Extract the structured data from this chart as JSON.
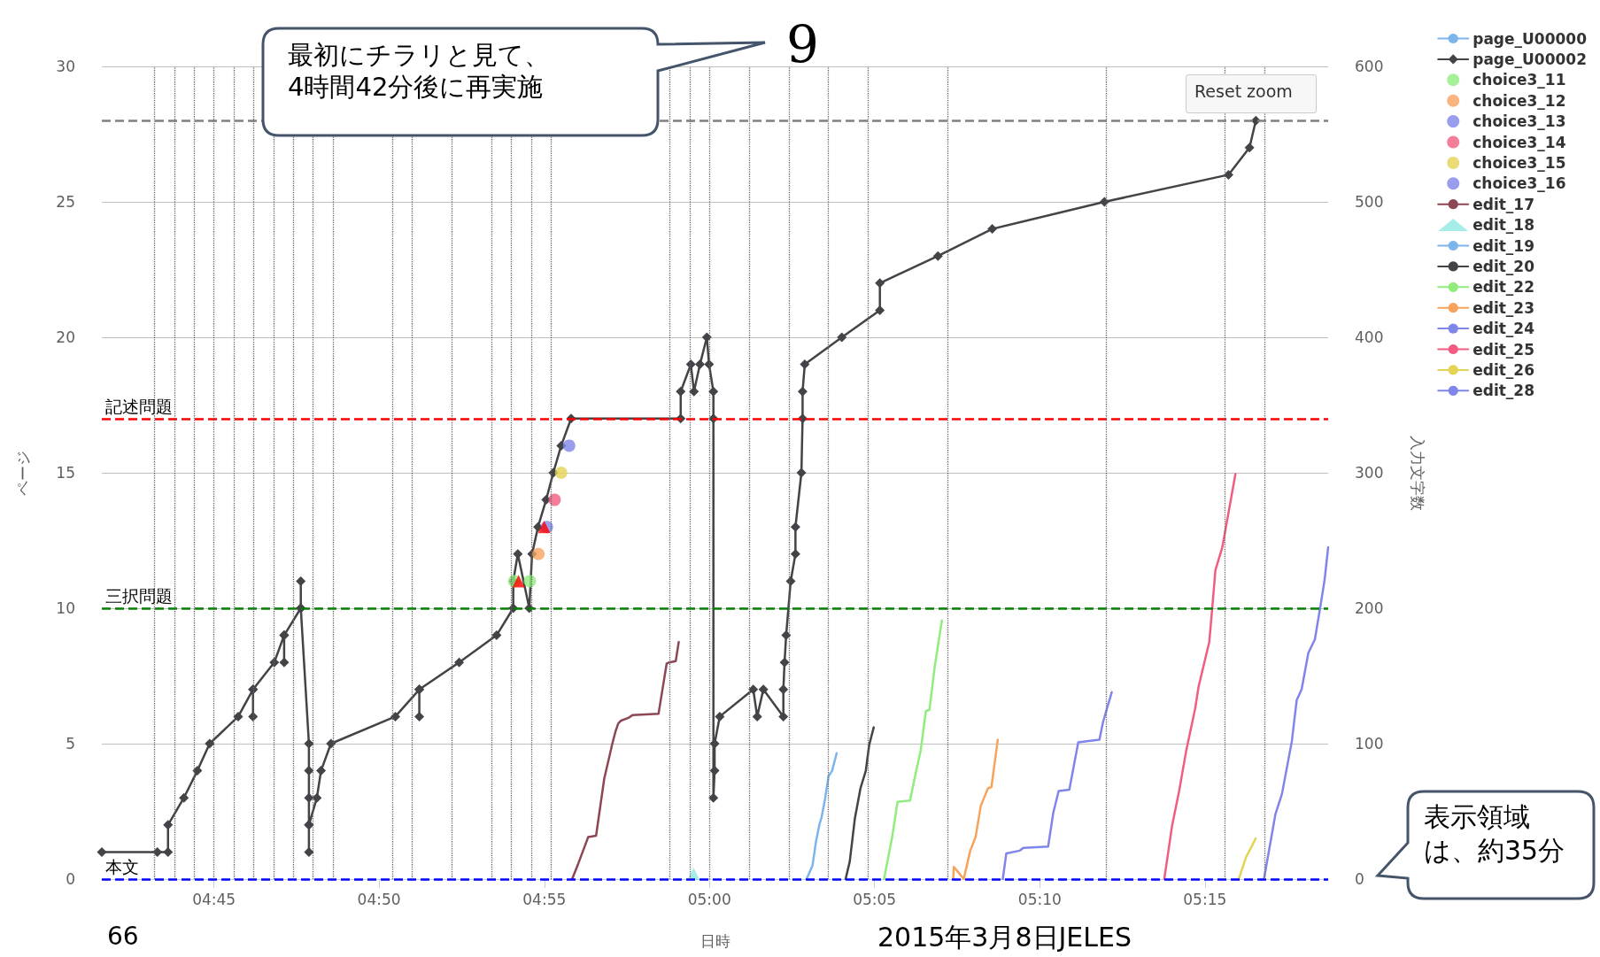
{
  "chart_data": {
    "type": "line",
    "xlabel": "日時",
    "ylabel": "ページ",
    "y2label": "入力文字数",
    "annotations": [
      "最初にチラリと見て、4時間42分後に再実施",
      "9",
      "Reset zoom",
      "66",
      "2015年3月8日JELES",
      "表示領域は、約35分"
    ],
    "xlim": [
      4.6934,
      5.3122
    ],
    "xticks": [
      {
        "value": 4.75,
        "label": "04:45"
      },
      {
        "value": 4.8333,
        "label": "04:50"
      },
      {
        "value": 4.9167,
        "label": "04:55"
      },
      {
        "value": 5,
        "label": "05:00"
      },
      {
        "value": 5.0833,
        "label": "05:05"
      },
      {
        "value": 5.1667,
        "label": "05:10"
      },
      {
        "value": 5.25,
        "label": "05:15"
      }
    ],
    "ylim": [
      0,
      30
    ],
    "yticks": [
      0,
      5,
      10,
      15,
      20,
      25,
      30
    ],
    "y2lim": [
      0,
      600
    ],
    "y2ticks": [
      0,
      100,
      200,
      300,
      400,
      500,
      600
    ],
    "grid": "y",
    "legend": "top right",
    "series": [
      {
        "name": "page_U00000",
        "color": "#7cb5ec",
        "marker": "circle"
      },
      {
        "name": "page_U00002",
        "color": "#434348",
        "marker": "diamond",
        "x": [
          4.6934,
          4.7214,
          4.7268,
          4.7268,
          4.7348,
          4.7416,
          4.7478,
          4.7622,
          4.7697,
          4.7697,
          4.7697,
          4.7804,
          4.7854,
          4.7854,
          4.7854,
          4.7938,
          4.7938,
          4.7938,
          4.7979,
          4.7979,
          4.7979,
          4.7979,
          4.7979,
          4.7979,
          4.8019,
          4.804,
          4.809,
          4.8415,
          4.8536,
          4.8536,
          4.8536,
          4.8737,
          4.8926,
          4.901,
          4.901,
          4.9033,
          4.9091,
          4.9105,
          4.9135,
          4.9176,
          4.9212,
          4.9252,
          4.9302,
          4.9855,
          4.9855,
          4.9906,
          4.9922,
          4.9952,
          4.9987,
          4.9998,
          5.002,
          5.002,
          5.002,
          5.0026,
          5.0026,
          5.0052,
          5.0221,
          5.0241,
          5.0272,
          5.0373,
          5.0373,
          5.0379,
          5.0387,
          5.041,
          5.0434,
          5.0434,
          5.0464,
          5.047,
          5.047,
          5.0481,
          5.0668,
          5.086,
          5.086,
          5.1153,
          5.1427,
          5.1993,
          5.2619,
          5.2725,
          5.2757
        ],
        "values": [
          1,
          1,
          1,
          2,
          3,
          4,
          5,
          6,
          7,
          6,
          7,
          8,
          9,
          8,
          9,
          10,
          11,
          10,
          5,
          4,
          3,
          2,
          1,
          2,
          3,
          4,
          5,
          6,
          7,
          6,
          7,
          8,
          9,
          10,
          11,
          12,
          10,
          12,
          13,
          14,
          15,
          16,
          17,
          17,
          18,
          19,
          18,
          19,
          20,
          19,
          18,
          17,
          3,
          4,
          5,
          6,
          7,
          6,
          7,
          6,
          7,
          8,
          9,
          11,
          12,
          13,
          15,
          17,
          18,
          19,
          20,
          21,
          22,
          23,
          24,
          25,
          26,
          27,
          28
        ]
      },
      {
        "name": "choice3_11",
        "type": "scatter",
        "color": "#90ed7d",
        "marker": "circle",
        "x": [
          4.9015,
          4.9094
        ],
        "values": [
          11,
          11
        ]
      },
      {
        "name": "choice3_12",
        "type": "scatter",
        "color": "#f7a35c",
        "marker": "circle",
        "x": [
          4.9137
        ],
        "values": [
          12
        ]
      },
      {
        "name": "choice3_13",
        "type": "scatter",
        "color": "#8085e9",
        "marker": "circle",
        "x": [
          4.918
        ],
        "values": [
          13
        ]
      },
      {
        "name": "choice3_14",
        "type": "scatter",
        "color": "#f15c80",
        "marker": "circle",
        "x": [
          4.9219
        ],
        "values": [
          14
        ]
      },
      {
        "name": "choice3_15",
        "type": "scatter",
        "color": "#e4d354",
        "marker": "circle",
        "x": [
          4.9252
        ],
        "values": [
          15
        ]
      },
      {
        "name": "choice3_16",
        "type": "scatter",
        "color": "#8085e9",
        "marker": "circle",
        "x": [
          4.9292
        ],
        "values": [
          16
        ]
      },
      {
        "name": "edit_17",
        "color": "#8d4653",
        "marker": "none",
        "axis": "y2",
        "x": [
          4.9307,
          4.9337,
          4.9388,
          4.9428,
          4.9469,
          4.951,
          4.9526,
          4.954,
          4.9554,
          4.9591,
          4.9611,
          4.9743,
          4.9784,
          4.9798,
          4.983,
          4.9845
        ],
        "values": [
          0,
          11,
          31,
          32,
          74,
          100,
          109,
          115,
          117,
          119,
          121,
          122,
          159,
          160,
          161,
          175
        ]
      },
      {
        "name": "edit_18",
        "type": "scatter",
        "color": "#91e8e1",
        "marker": "triangle",
        "axis": "y2",
        "x": [
          4.992
        ],
        "values": [
          4
        ]
      },
      {
        "name": "edit_19",
        "color": "#7cb5ec",
        "marker": "none",
        "axis": "y2",
        "x": [
          5.049,
          5.052,
          5.0538,
          5.0556,
          5.0565,
          5.0583,
          5.0601,
          5.0619,
          5.0642
        ],
        "values": [
          0,
          10,
          28,
          41,
          45,
          59,
          76,
          80,
          93
        ]
      },
      {
        "name": "edit_20",
        "color": "#434348",
        "marker": "none",
        "axis": "y2",
        "x": [
          5.0687,
          5.0708,
          5.0734,
          5.0762,
          5.0789,
          5.0806,
          5.0829
        ],
        "values": [
          0,
          13,
          45,
          67,
          80,
          99,
          112
        ]
      },
      {
        "name": "edit_22",
        "color": "#90ed7d",
        "marker": "none",
        "axis": "y2",
        "x": [
          5.0881,
          5.0922,
          5.0949,
          5.1012,
          5.1039,
          5.1066,
          5.1092,
          5.111,
          5.1137,
          5.1173
        ],
        "values": [
          0,
          31,
          57,
          58,
          77,
          95,
          124,
          125,
          157,
          191
        ]
      },
      {
        "name": "edit_23",
        "color": "#f7a35c",
        "marker": "none",
        "axis": "y2",
        "x": [
          5.123,
          5.1233,
          5.1262,
          5.1283,
          5.1316,
          5.1343,
          5.1369,
          5.1405,
          5.1423,
          5.1455
        ],
        "values": [
          0,
          9,
          4,
          0,
          21,
          31,
          54,
          67,
          68,
          103
        ]
      },
      {
        "name": "edit_24",
        "color": "#8085e9",
        "marker": "none",
        "axis": "y2",
        "x": [
          5.148,
          5.1498,
          5.1566,
          5.1584,
          5.1709,
          5.1735,
          5.1762,
          5.1816,
          5.1861,
          5.1968,
          5.1986,
          5.203
        ],
        "values": [
          0,
          19,
          21,
          23,
          24,
          49,
          65,
          66,
          101,
          103,
          116,
          138
        ]
      },
      {
        "name": "edit_25",
        "color": "#f15c80",
        "marker": "none",
        "axis": "y2",
        "x": [
          5.2295,
          5.2334,
          5.237,
          5.2406,
          5.2451,
          5.2468,
          5.2522,
          5.2537,
          5.2553,
          5.2588,
          5.2654
        ],
        "values": [
          0,
          39,
          65,
          95,
          126,
          142,
          175,
          200,
          228,
          245,
          299
        ]
      },
      {
        "name": "edit_26",
        "color": "#e4d354",
        "marker": "none",
        "axis": "y2",
        "x": [
          5.2671,
          5.2707,
          5.2732,
          5.2756
        ],
        "values": [
          0,
          16,
          23,
          30
        ]
      },
      {
        "name": "edit_28",
        "color": "#8085e9",
        "marker": "none",
        "axis": "y2",
        "x": [
          5.2798,
          5.2856,
          5.2889,
          5.2939,
          5.2963,
          5.2988,
          5.3022,
          5.3055,
          5.3088,
          5.3104,
          5.3122
        ],
        "values": [
          0,
          48,
          63,
          102,
          132,
          140,
          167,
          177,
          206,
          221,
          245
        ]
      },
      {
        "type": "scatter",
        "color": "#ff0000",
        "marker": "triangle",
        "x": [
          4.9037,
          4.9166
        ],
        "values": [
          11,
          13
        ]
      }
    ],
    "ref_lines": [
      {
        "axis": "y",
        "value": 28,
        "color": "#808080",
        "line_style": "dashed"
      },
      {
        "axis": "y",
        "value": 17,
        "label": "記述問題",
        "color": "#ff0000",
        "line_style": "dashed"
      },
      {
        "axis": "y",
        "value": 10,
        "label": "三択問題",
        "color": "#008000",
        "line_style": "dashed"
      },
      {
        "axis": "y",
        "value": 0,
        "label": "本文",
        "color": "#0000ff",
        "line_style": "dashed"
      },
      {
        "axis": "x",
        "value": 4.7213,
        "color": "#666666",
        "line_style": "dotted"
      },
      {
        "axis": "x",
        "value": 4.73,
        "color": "#666666",
        "line_style": "dotted"
      },
      {
        "axis": "x",
        "value": 4.7403,
        "color": "#666666",
        "line_style": "dotted"
      },
      {
        "axis": "x",
        "value": 4.7475,
        "color": "#666666",
        "line_style": "dotted"
      },
      {
        "axis": "x",
        "value": 4.7604,
        "color": "#666666",
        "line_style": "dotted"
      },
      {
        "axis": "x",
        "value": 4.768,
        "color": "#666666",
        "line_style": "dotted"
      },
      {
        "axis": "x",
        "value": 4.7783,
        "color": "#666666",
        "line_style": "dotted"
      },
      {
        "axis": "x",
        "value": 4.79,
        "color": "#666666",
        "line_style": "dotted"
      },
      {
        "axis": "x",
        "value": 4.798,
        "color": "#666666",
        "line_style": "dotted"
      },
      {
        "axis": "x",
        "value": 4.808,
        "color": "#666666",
        "line_style": "dotted"
      },
      {
        "axis": "x",
        "value": 4.84,
        "color": "#666666",
        "line_style": "dotted"
      },
      {
        "axis": "x",
        "value": 4.8491,
        "color": "#666666",
        "line_style": "dotted"
      },
      {
        "axis": "x",
        "value": 4.8681,
        "color": "#666666",
        "line_style": "dotted"
      },
      {
        "axis": "x",
        "value": 4.89,
        "color": "#666666",
        "line_style": "dotted"
      },
      {
        "axis": "x",
        "value": 4.9,
        "color": "#666666",
        "line_style": "dotted"
      },
      {
        "axis": "x",
        "value": 4.908,
        "color": "#666666",
        "line_style": "dotted"
      },
      {
        "axis": "x",
        "value": 4.919,
        "color": "#666666",
        "line_style": "dotted"
      },
      {
        "axis": "x",
        "value": 4.98,
        "color": "#666666",
        "line_style": "dotted"
      },
      {
        "axis": "x",
        "value": 4.99,
        "color": "#666666",
        "line_style": "dotted"
      },
      {
        "axis": "x",
        "value": 5,
        "color": "#666666",
        "line_style": "dotted"
      },
      {
        "axis": "x",
        "value": 5.02,
        "color": "#666666",
        "line_style": "dotted"
      },
      {
        "axis": "x",
        "value": 5.04,
        "color": "#666666",
        "line_style": "dotted"
      },
      {
        "axis": "x",
        "value": 5.06,
        "color": "#666666",
        "line_style": "dotted"
      },
      {
        "axis": "x",
        "value": 5.0821,
        "color": "#666666",
        "line_style": "dotted"
      },
      {
        "axis": "x",
        "value": 5.12,
        "color": "#666666",
        "line_style": "dotted"
      },
      {
        "axis": "x",
        "value": 5.2019,
        "color": "#666666",
        "line_style": "dotted"
      },
      {
        "axis": "x",
        "value": 5.26,
        "color": "#666666",
        "line_style": "dotted"
      },
      {
        "axis": "x",
        "value": 5.28,
        "color": "#666666",
        "line_style": "dotted"
      }
    ]
  }
}
